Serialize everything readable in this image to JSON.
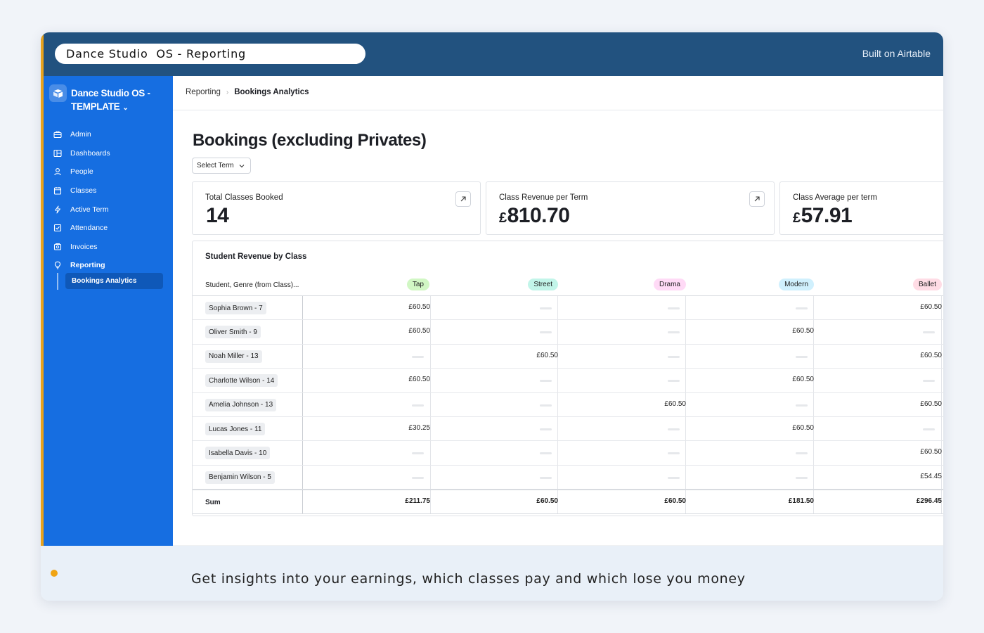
{
  "window": {
    "title": "Dance Studio  OS - Reporting",
    "built_on": "Built on Airtable"
  },
  "sidebar": {
    "brand_line1": "Dance Studio OS -",
    "brand_line2": "TEMPLATE",
    "items": [
      {
        "label": "Admin",
        "icon": "briefcase-icon"
      },
      {
        "label": "Dashboards",
        "icon": "dashboard-icon"
      },
      {
        "label": "People",
        "icon": "person-icon"
      },
      {
        "label": "Classes",
        "icon": "calendar-icon"
      },
      {
        "label": "Active Term",
        "icon": "lightning-icon"
      },
      {
        "label": "Attendance",
        "icon": "checkbox-icon"
      },
      {
        "label": "Invoices",
        "icon": "invoice-icon"
      },
      {
        "label": "Reporting",
        "icon": "lightbulb-icon"
      }
    ],
    "sub_item": "Bookings Analytics"
  },
  "breadcrumb": {
    "parent": "Reporting",
    "current": "Bookings Analytics"
  },
  "page": {
    "title": "Bookings (excluding Privates)",
    "term_select": "Select Term"
  },
  "stats": [
    {
      "label": "Total Classes Booked",
      "currency": "",
      "value": "14"
    },
    {
      "label": "Class Revenue per Term",
      "currency": "£",
      "value": "810.70"
    },
    {
      "label": "Class Average per term",
      "currency": "£",
      "value": "57.91"
    }
  ],
  "table": {
    "title": "Student Revenue by Class",
    "row_header": "Student, Genre (from Class)...",
    "genres": [
      {
        "label": "Tap",
        "color": "#d1f7c4"
      },
      {
        "label": "Street",
        "color": "#c2f5e9"
      },
      {
        "label": "Drama",
        "color": "#ffdaf6"
      },
      {
        "label": "Modern",
        "color": "#d0f0fd"
      },
      {
        "label": "Ballet",
        "color": "#ffdce5"
      }
    ],
    "rows": [
      {
        "student": "Sophia Brown - 7",
        "values": [
          "£60.50",
          "",
          "",
          "",
          "£60.50"
        ]
      },
      {
        "student": "Oliver Smith - 9",
        "values": [
          "£60.50",
          "",
          "",
          "£60.50",
          ""
        ]
      },
      {
        "student": "Noah Miller - 13",
        "values": [
          "",
          "£60.50",
          "",
          "",
          "£60.50"
        ]
      },
      {
        "student": "Charlotte Wilson - 14",
        "values": [
          "£60.50",
          "",
          "",
          "£60.50",
          ""
        ]
      },
      {
        "student": "Amelia Johnson - 13",
        "values": [
          "",
          "",
          "£60.50",
          "",
          "£60.50"
        ]
      },
      {
        "student": "Lucas Jones - 11",
        "values": [
          "£30.25",
          "",
          "",
          "£60.50",
          ""
        ]
      },
      {
        "student": "Isabella Davis - 10",
        "values": [
          "",
          "",
          "",
          "",
          "£60.50"
        ]
      },
      {
        "student": "Benjamin Wilson - 5",
        "values": [
          "",
          "",
          "",
          "",
          "£54.45"
        ]
      }
    ],
    "sum_label": "Sum",
    "sums": [
      "£211.75",
      "£60.50",
      "£60.50",
      "£181.50",
      "£296.45"
    ]
  },
  "footer": {
    "text": "Get insights into your earnings, which classes pay and which lose you money"
  }
}
